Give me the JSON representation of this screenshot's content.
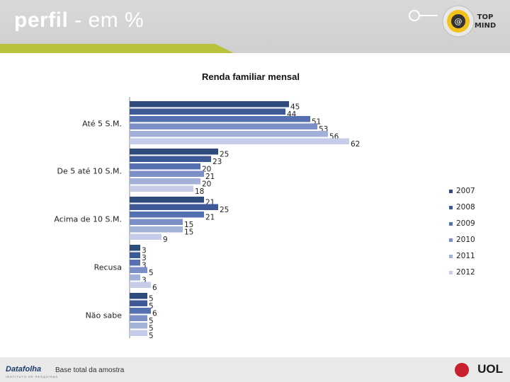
{
  "header": {
    "title_bold": "perfil",
    "title_rest": " - em %",
    "badge_line1": "TOP",
    "badge_line2": "MIND"
  },
  "footer": {
    "note": "Base total da amostra",
    "brand_left": "Datafolha",
    "brand_left_sub": "INSTITUTO DE PESQUISAS",
    "brand_right": "UOL"
  },
  "colors": {
    "header_bg": "#d9d9d9",
    "accent_green": "#b9c23a",
    "series": [
      "#2f4b7c",
      "#3d5a96",
      "#5470b0",
      "#7c8fc6",
      "#a3b0d8",
      "#c5cde9"
    ]
  },
  "chart_data": {
    "type": "bar",
    "orientation": "horizontal",
    "title": "Renda familiar mensal",
    "categories": [
      "Até 5 S.M.",
      "De 5 até 10 S.M.",
      "Acima de 10 S.M.",
      "Recusa",
      "Não sabe"
    ],
    "series": [
      {
        "name": "2007",
        "values": [
          45,
          25,
          21,
          3,
          5
        ]
      },
      {
        "name": "2008",
        "values": [
          44,
          23,
          25,
          3,
          5
        ]
      },
      {
        "name": "2009",
        "values": [
          51,
          20,
          21,
          3,
          6
        ]
      },
      {
        "name": "2010",
        "values": [
          53,
          21,
          15,
          5,
          5
        ]
      },
      {
        "name": "2011",
        "values": [
          56,
          20,
          15,
          3,
          5
        ]
      },
      {
        "name": "2012",
        "values": [
          62,
          18,
          9,
          6,
          5
        ]
      }
    ],
    "xlim": [
      0,
      62
    ],
    "legend_position": "right"
  }
}
